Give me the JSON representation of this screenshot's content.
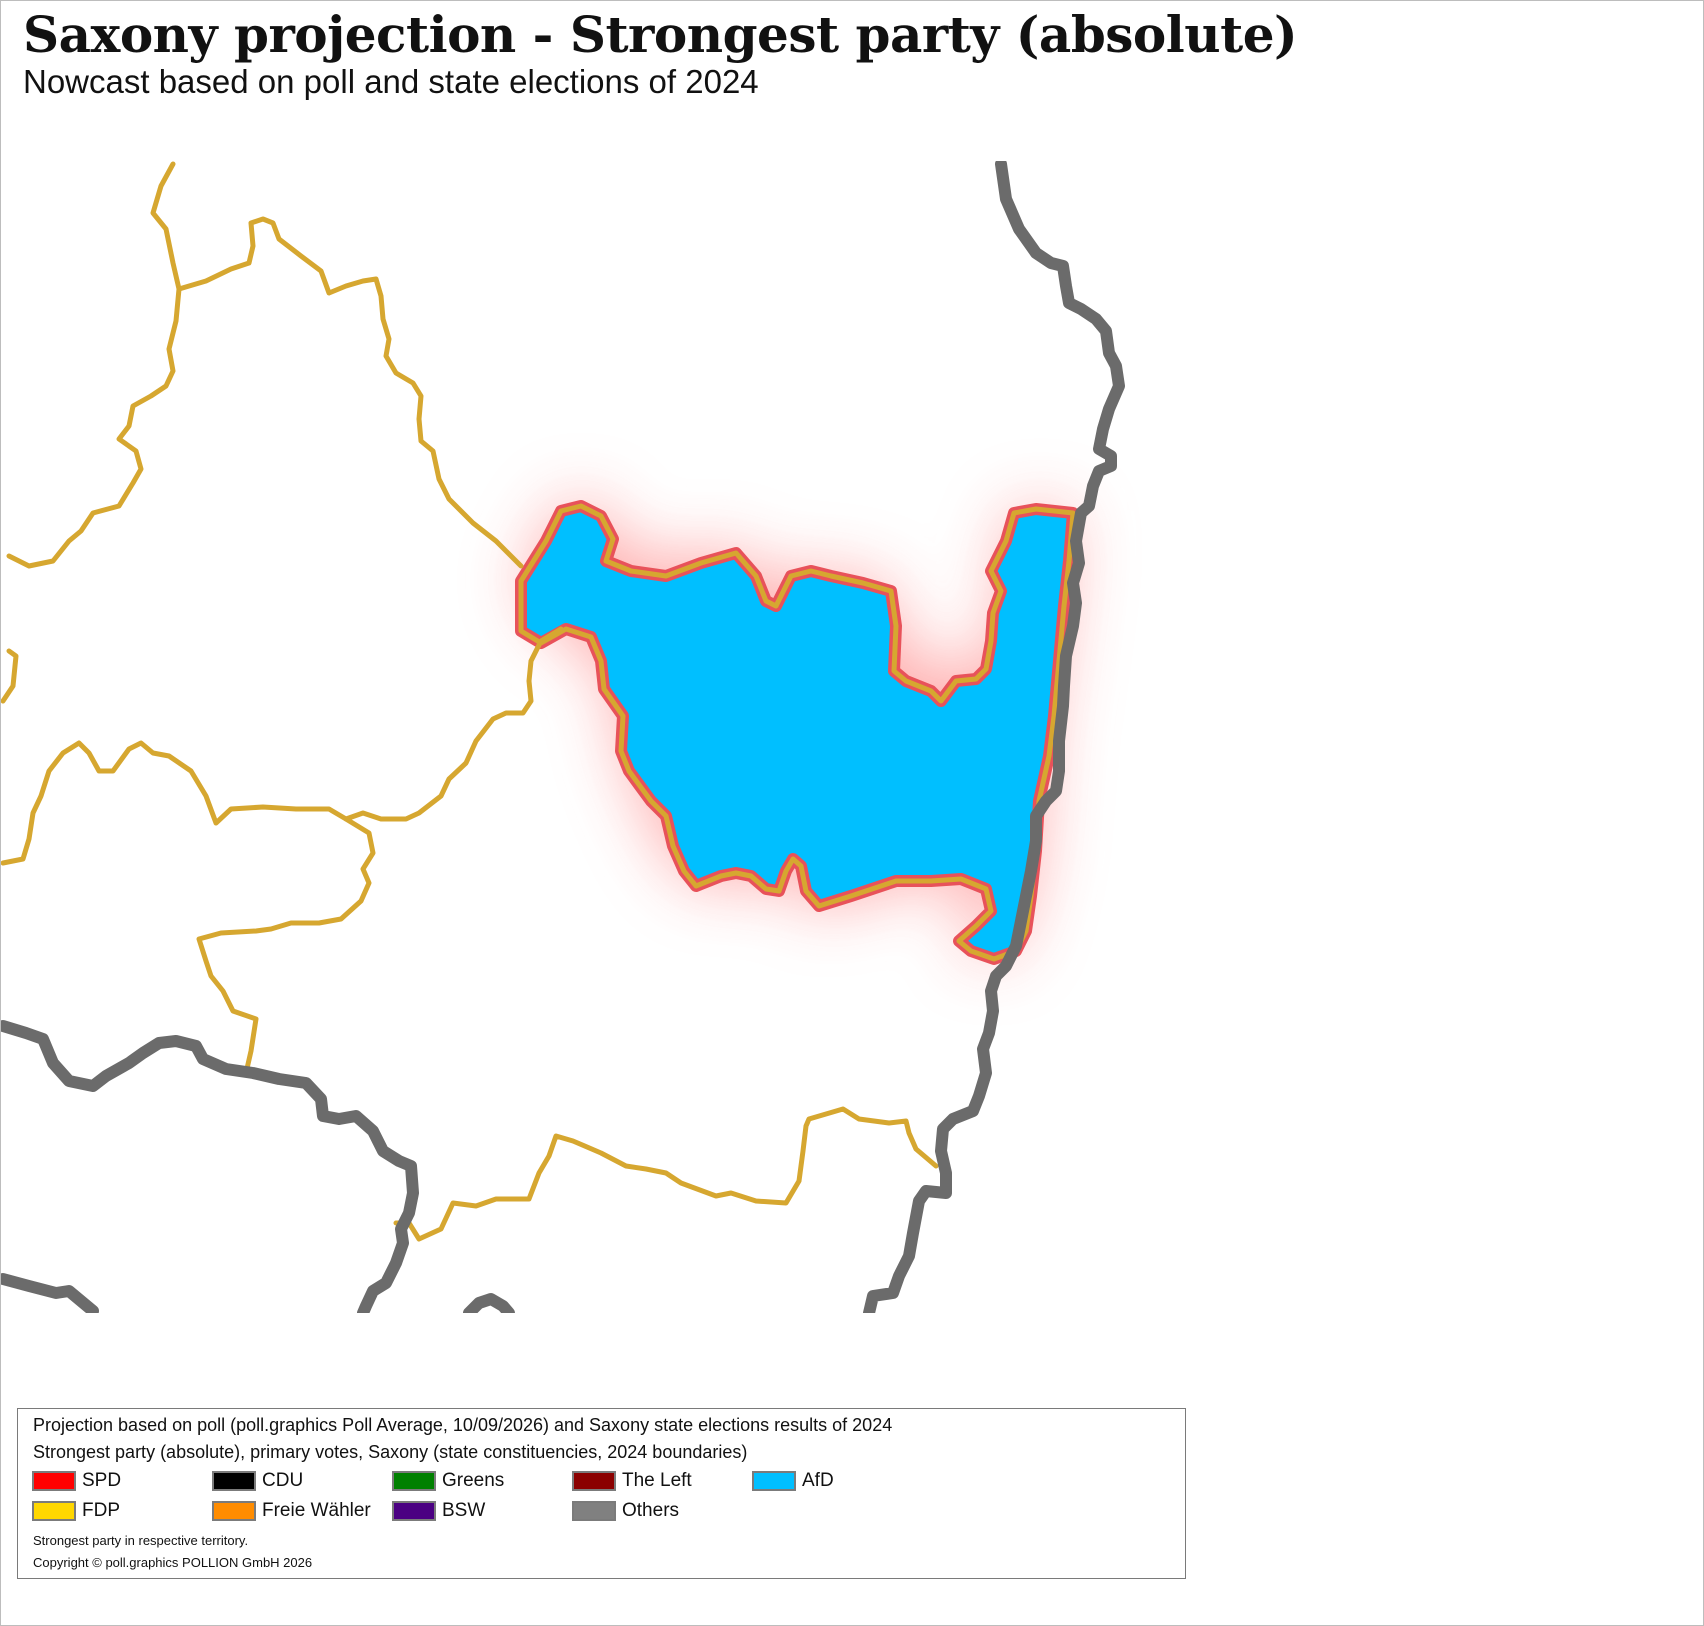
{
  "title": "Saxony projection - Strongest party (absolute)",
  "subtitle": "Nowcast based on poll and state elections of 2024",
  "map": {
    "highlighted_constituency_party": "AfD",
    "highlight_glow_color": "#ff6b6b",
    "constituency_border_color": "#d6a730",
    "state_border_color": "#6b6b6b"
  },
  "legend": {
    "line1": "Projection based on poll (poll.graphics Poll Average, 10/09/2026) and Saxony state elections results of 2024",
    "line2": "Strongest party (absolute), primary votes, Saxony (state constituencies, 2024 boundaries)",
    "items": [
      {
        "label": "SPD",
        "color": "#ff0000"
      },
      {
        "label": "CDU",
        "color": "#000000"
      },
      {
        "label": "Greens",
        "color": "#008000"
      },
      {
        "label": "The Left",
        "color": "#8b0000"
      },
      {
        "label": "AfD",
        "color": "#00bfff"
      },
      {
        "label": "FDP",
        "color": "#ffd700"
      },
      {
        "label": "Freie Wähler",
        "color": "#ff8c00"
      },
      {
        "label": "BSW",
        "color": "#4b0082"
      },
      {
        "label": "Others",
        "color": "#808080"
      }
    ],
    "note": "Strongest party in respective territory.",
    "copyright": "Copyright © poll.graphics POLLION GmbH 2026"
  }
}
